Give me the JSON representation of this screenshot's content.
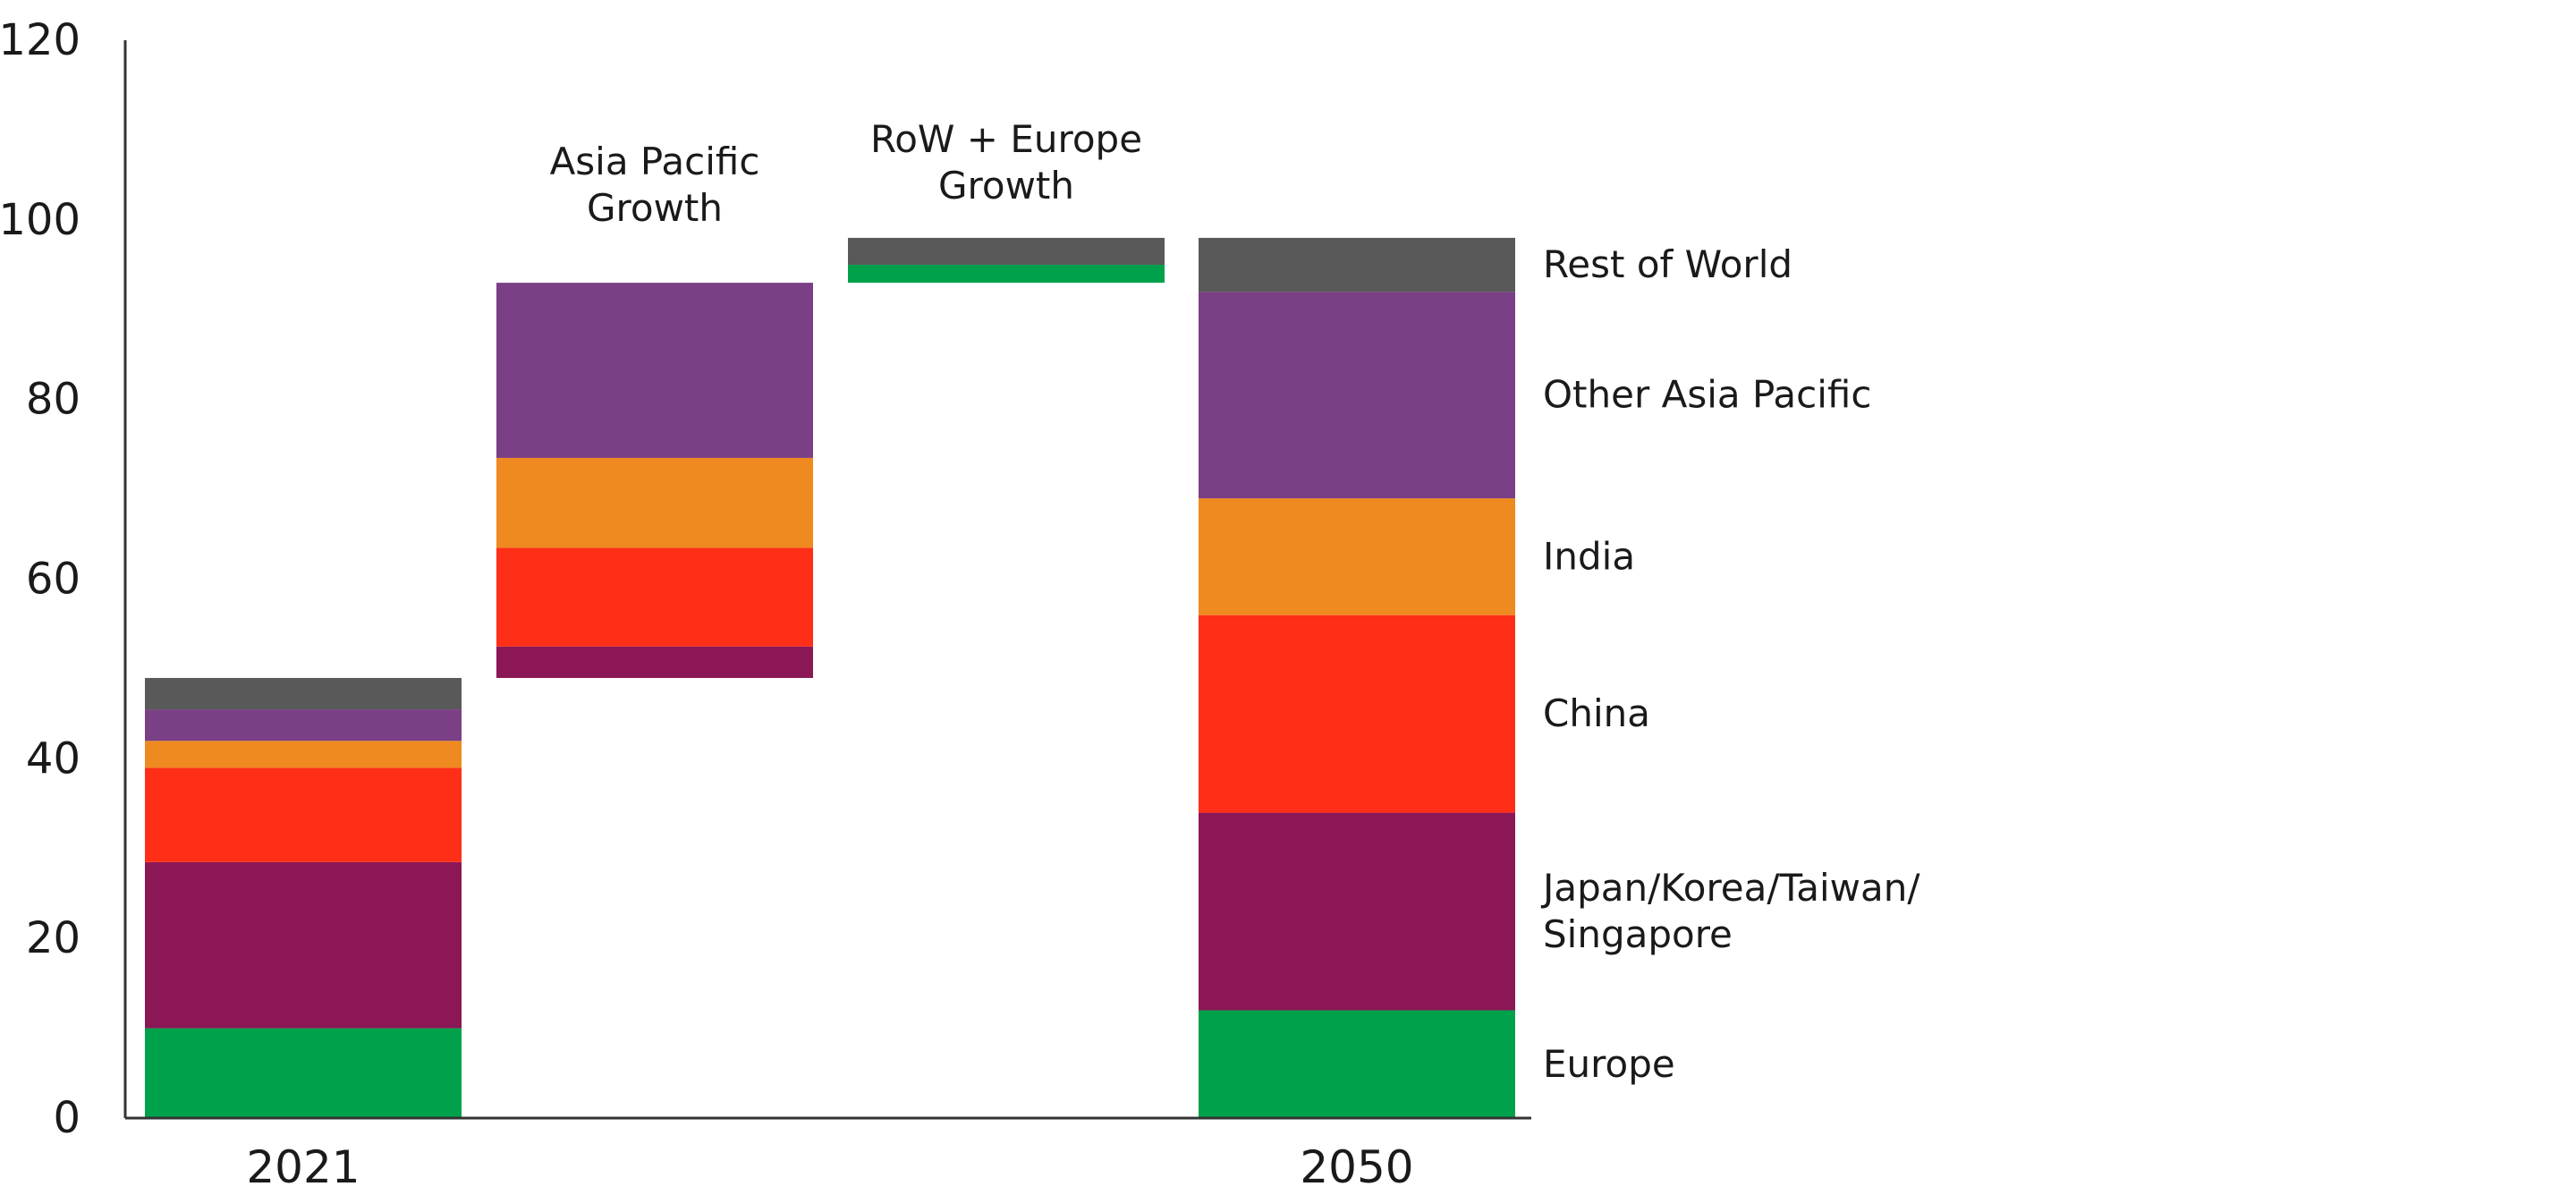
{
  "chart_data": {
    "type": "bar",
    "subtype": "stacked-waterfall",
    "title": "",
    "xlabel": "",
    "ylabel": "",
    "ylim": [
      0,
      120
    ],
    "yticks": [
      0,
      20,
      40,
      60,
      80,
      100,
      120
    ],
    "grid": false,
    "legend_placement": "right of last bar (inline labels)",
    "categories": [
      "2021",
      "",
      "",
      "2050"
    ],
    "annotations": [
      {
        "category_index": 1,
        "lines": [
          "Asia Pacific",
          "Growth"
        ]
      },
      {
        "category_index": 2,
        "lines": [
          "RoW + Europe",
          "Growth"
        ]
      }
    ],
    "series": [
      {
        "name": "Europe",
        "color": "#00A14B",
        "segments": [
          [
            0,
            10
          ],
          null,
          [
            93,
            95
          ],
          [
            0,
            12
          ]
        ]
      },
      {
        "name": "Japan/Korea/Taiwan/ Singapore",
        "label_lines": [
          "Japan/Korea/Taiwan/",
          "Singapore"
        ],
        "color": "#8B1757",
        "segments": [
          [
            10,
            28.5
          ],
          [
            49,
            52.5
          ],
          null,
          [
            12,
            34
          ]
        ]
      },
      {
        "name": "China",
        "color": "#FF2E17",
        "segments": [
          [
            28.5,
            39
          ],
          [
            52.5,
            63.5
          ],
          null,
          [
            34,
            56
          ]
        ]
      },
      {
        "name": "India",
        "color": "#EE8A1F",
        "segments": [
          [
            39,
            42
          ],
          [
            63.5,
            73.5
          ],
          null,
          [
            56,
            69
          ]
        ]
      },
      {
        "name": "Other Asia Pacific",
        "color": "#7A3F85",
        "segments": [
          [
            42,
            45.5
          ],
          [
            73.5,
            93
          ],
          null,
          [
            69,
            92
          ]
        ]
      },
      {
        "name": "Rest of World",
        "color": "#595959",
        "segments": [
          [
            45.5,
            49
          ],
          null,
          [
            95,
            98
          ],
          [
            92,
            98
          ]
        ]
      }
    ]
  }
}
